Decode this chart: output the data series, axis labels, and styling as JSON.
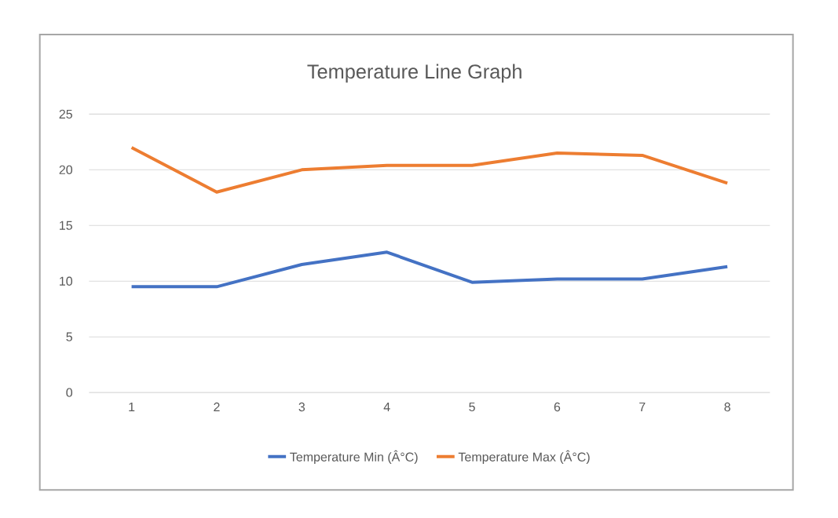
{
  "chart_data": {
    "type": "line",
    "title": "Temperature Line Graph",
    "categories": [
      "1",
      "2",
      "3",
      "4",
      "5",
      "6",
      "7",
      "8"
    ],
    "series": [
      {
        "name": "Temperature Min (Â°C)",
        "color": "#4472c4",
        "values": [
          9.5,
          9.5,
          11.5,
          12.6,
          9.9,
          10.2,
          10.2,
          11.3
        ]
      },
      {
        "name": "Temperature Max (Â°C)",
        "color": "#ed7d31",
        "values": [
          22.0,
          18.0,
          20.0,
          20.4,
          20.4,
          21.5,
          21.3,
          18.8
        ]
      }
    ],
    "ylim": [
      0,
      25
    ],
    "yticks": [
      0,
      5,
      10,
      15,
      20,
      25
    ],
    "grid": "y",
    "legend": "bottom",
    "marker": "none",
    "line_style": "solid"
  }
}
